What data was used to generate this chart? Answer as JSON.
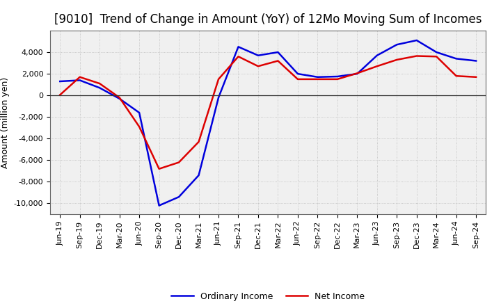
{
  "title": "[9010]  Trend of Change in Amount (YoY) of 12Mo Moving Sum of Incomes",
  "ylabel": "Amount (million yen)",
  "background_color": "#ffffff",
  "grid_color": "#bbbbbb",
  "plot_bg_color": "#f0f0f0",
  "ordinary_income_color": "#0000dd",
  "net_income_color": "#dd0000",
  "line_width": 1.8,
  "ylim": [
    -11000,
    6000
  ],
  "yticks": [
    -10000,
    -8000,
    -6000,
    -4000,
    -2000,
    0,
    2000,
    4000
  ],
  "x_labels": [
    "Jun-19",
    "Sep-19",
    "Dec-19",
    "Mar-20",
    "Jun-20",
    "Sep-20",
    "Dec-20",
    "Mar-21",
    "Jun-21",
    "Sep-21",
    "Dec-21",
    "Mar-22",
    "Jun-22",
    "Sep-22",
    "Dec-22",
    "Mar-23",
    "Jun-23",
    "Sep-23",
    "Dec-23",
    "Mar-24",
    "Jun-24",
    "Sep-24"
  ],
  "ordinary_income": [
    1300,
    1400,
    700,
    -300,
    -1600,
    -10200,
    -9400,
    -7400,
    -200,
    4500,
    3700,
    4000,
    2000,
    1700,
    1750,
    2000,
    3700,
    4700,
    5100,
    4000,
    3400,
    3200
  ],
  "net_income": [
    50,
    1700,
    1100,
    -200,
    -2900,
    -6800,
    -6200,
    -4300,
    1500,
    3600,
    2700,
    3200,
    1500,
    1500,
    1500,
    2050,
    2700,
    3300,
    3650,
    3600,
    1800,
    1700
  ],
  "legend_labels": [
    "Ordinary Income",
    "Net Income"
  ],
  "title_fontsize": 12,
  "ylabel_fontsize": 9,
  "tick_fontsize": 8
}
